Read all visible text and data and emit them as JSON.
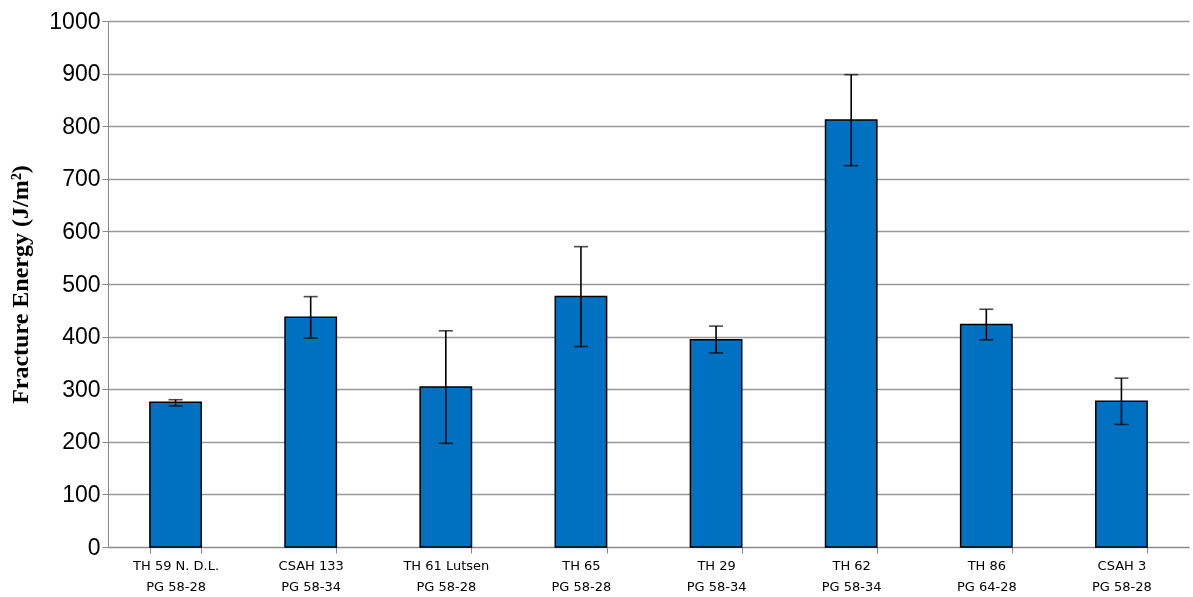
{
  "chart_data": {
    "type": "bar",
    "ylabel": "Fracture Energy (J/m²)",
    "categories": [
      "TH 59 N. D.L.\nPG 58-28",
      "CSAH 133\nPG 58-34",
      "TH 61 Lutsen\nPG 58-28",
      "TH 65\nPG 58-28",
      "TH 29\nPG 58-34",
      "TH 62\nPG 58-34",
      "TH 86\nPG 64-28",
      "CSAH 3\nPG 58-28"
    ],
    "values": [
      275,
      437,
      304,
      476,
      394,
      812,
      423,
      277
    ],
    "errors": [
      [
        268,
        280
      ],
      [
        397,
        476
      ],
      [
        197,
        411
      ],
      [
        381,
        571
      ],
      [
        369,
        420
      ],
      [
        725,
        898
      ],
      [
        394,
        452
      ],
      [
        233,
        321
      ]
    ],
    "color": "#0070c0",
    "ylim": [
      0,
      1000
    ],
    "yticks": [
      0,
      100,
      200,
      300,
      400,
      500,
      600,
      700,
      800,
      900,
      1000
    ],
    "grid": "y"
  }
}
